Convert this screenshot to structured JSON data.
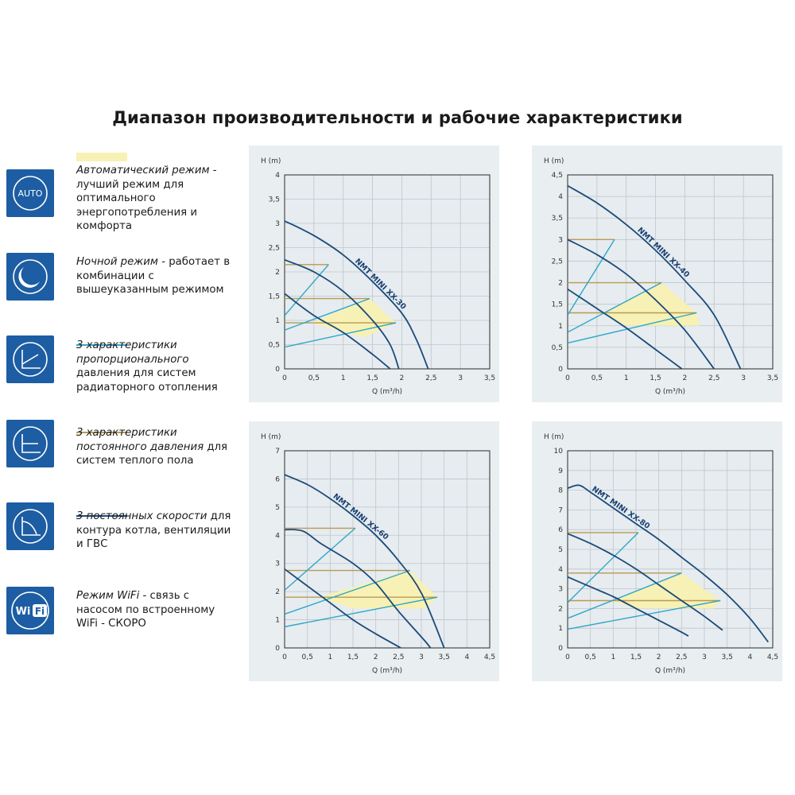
{
  "title": "Диапазон производительности и рабочие характеристики",
  "legend": [
    {
      "icon": "auto-icon",
      "icon_text": "AUTO",
      "swatch": "yellow",
      "emph": "Автоматический режим",
      "rest": " - лучший режим для оптимального энергопотребления и комфорта"
    },
    {
      "icon": "night-mode-icon",
      "icon_text": "",
      "swatch": "",
      "emph": "Ночной режим",
      "rest": " - работает в комбинации с вышеуказанным режимом"
    },
    {
      "icon": "proportional-pressure-icon",
      "icon_text": "",
      "swatch": "cyan",
      "emph": "3 характеристики пропорционального",
      "rest": " давления для систем радиаторного отопления"
    },
    {
      "icon": "constant-pressure-icon",
      "icon_text": "",
      "swatch": "gold",
      "emph": "3 характеристики постоянного давления",
      "rest": " для систем теплого пола"
    },
    {
      "icon": "constant-speed-icon",
      "icon_text": "",
      "swatch": "navy",
      "emph": "3 постоянных скорости",
      "rest": " для контура котла, вентиляции и ГВС"
    },
    {
      "icon": "wifi-icon",
      "icon_text": "Wi Fi",
      "swatch": "",
      "emph": "Режим WiFi",
      "rest": " - связь с насосом по встроенному WiFi - СКОРО"
    }
  ],
  "colors": {
    "navy": "#1b4a7a",
    "cyan": "#2fa6c9",
    "gold": "#b89a55",
    "yellow_fill": "#f7f1b5",
    "icon_blue": "#1d5da3",
    "panel_bg": "#e9eef1"
  },
  "chart_data": [
    {
      "type": "line",
      "title": "NMT MINI XX-30",
      "xlabel": "Q (m³/h)",
      "ylabel": "H (m)",
      "xlim": [
        0,
        3.5
      ],
      "ylim": [
        0,
        4
      ],
      "xticks": [
        "0",
        "0,5",
        "1",
        "1,5",
        "2",
        "2,5",
        "3",
        "3,5"
      ],
      "yticks": [
        "0",
        "0,5",
        "1",
        "1,5",
        "2",
        "2,5",
        "3",
        "3,5",
        "4"
      ],
      "constant_speed": [
        [
          [
            0,
            3.05
          ],
          [
            0.5,
            2.75
          ],
          [
            1,
            2.35
          ],
          [
            1.5,
            1.8
          ],
          [
            2,
            1.15
          ],
          [
            2.25,
            0.6
          ],
          [
            2.45,
            0
          ]
        ],
        [
          [
            0,
            2.25
          ],
          [
            0.5,
            2.0
          ],
          [
            1,
            1.6
          ],
          [
            1.5,
            1.0
          ],
          [
            1.8,
            0.5
          ],
          [
            1.95,
            0
          ]
        ],
        [
          [
            0,
            1.55
          ],
          [
            0.5,
            1.1
          ],
          [
            1,
            0.75
          ],
          [
            1.5,
            0.3
          ],
          [
            1.8,
            0
          ]
        ]
      ],
      "proportional": [
        [
          [
            0,
            1.1
          ],
          [
            0.75,
            2.15
          ]
        ],
        [
          [
            0,
            0.8
          ],
          [
            1.45,
            1.45
          ]
        ],
        [
          [
            0,
            0.45
          ],
          [
            1.9,
            0.95
          ]
        ]
      ],
      "constant_pressure": [
        [
          [
            0,
            2.15
          ],
          [
            0.75,
            2.15
          ]
        ],
        [
          [
            0,
            1.45
          ],
          [
            1.45,
            1.45
          ]
        ],
        [
          [
            0,
            0.95
          ],
          [
            1.9,
            0.95
          ]
        ]
      ],
      "auto_area": [
        [
          0.45,
          0.95
        ],
        [
          1.45,
          1.45
        ],
        [
          1.9,
          0.95
        ],
        [
          1.35,
          0.65
        ]
      ]
    },
    {
      "type": "line",
      "title": "NMT MINI XX-40",
      "xlabel": "Q (m³/h)",
      "ylabel": "H (m)",
      "xlim": [
        0,
        3.5
      ],
      "ylim": [
        0,
        4.5
      ],
      "xticks": [
        "0",
        "0,5",
        "1",
        "1,5",
        "2",
        "2,5",
        "3",
        "3,5"
      ],
      "yticks": [
        "0",
        "0,5",
        "1",
        "1,5",
        "2",
        "2,5",
        "3",
        "3,5",
        "4",
        "4,5"
      ],
      "constant_speed": [
        [
          [
            0,
            4.25
          ],
          [
            0.5,
            3.85
          ],
          [
            1,
            3.35
          ],
          [
            1.5,
            2.75
          ],
          [
            2,
            2.05
          ],
          [
            2.5,
            1.25
          ],
          [
            2.95,
            0
          ]
        ],
        [
          [
            0,
            3.0
          ],
          [
            0.5,
            2.65
          ],
          [
            1,
            2.2
          ],
          [
            1.5,
            1.6
          ],
          [
            2,
            0.9
          ],
          [
            2.5,
            0
          ]
        ],
        [
          [
            0,
            1.85
          ],
          [
            0.5,
            1.4
          ],
          [
            1,
            0.95
          ],
          [
            1.5,
            0.45
          ],
          [
            1.95,
            0
          ]
        ]
      ],
      "proportional": [
        [
          [
            0,
            1.25
          ],
          [
            0.8,
            3.0
          ]
        ],
        [
          [
            0,
            0.85
          ],
          [
            1.6,
            2.0
          ]
        ],
        [
          [
            0,
            0.6
          ],
          [
            2.2,
            1.3
          ]
        ]
      ],
      "constant_pressure": [
        [
          [
            0,
            3.0
          ],
          [
            0.8,
            3.0
          ]
        ],
        [
          [
            0,
            2.0
          ],
          [
            1.6,
            2.0
          ]
        ],
        [
          [
            0,
            1.3
          ],
          [
            2.2,
            1.3
          ]
        ]
      ],
      "auto_area": [
        [
          0.6,
          1.3
        ],
        [
          1.6,
          2.0
        ],
        [
          2.2,
          1.3
        ],
        [
          2.25,
          1.0
        ],
        [
          1.0,
          1.0
        ]
      ]
    },
    {
      "type": "line",
      "title": "NMT MINI XX-60",
      "xlabel": "Q (m³/h)",
      "ylabel": "H (m)",
      "xlim": [
        0,
        4.5
      ],
      "ylim": [
        0,
        7
      ],
      "xticks": [
        "0",
        "0,5",
        "1",
        "1,5",
        "2",
        "2,5",
        "3",
        "3,5",
        "4",
        "4,5"
      ],
      "yticks": [
        "0",
        "1",
        "2",
        "3",
        "4",
        "5",
        "6",
        "7"
      ],
      "constant_speed": [
        [
          [
            0,
            6.15
          ],
          [
            0.5,
            5.8
          ],
          [
            1,
            5.3
          ],
          [
            1.5,
            4.7
          ],
          [
            2,
            4.0
          ],
          [
            2.5,
            3.1
          ],
          [
            3,
            1.95
          ],
          [
            3.5,
            0
          ]
        ],
        [
          [
            0,
            4.2
          ],
          [
            0.4,
            4.15
          ],
          [
            0.8,
            3.7
          ],
          [
            1.5,
            3.0
          ],
          [
            2,
            2.3
          ],
          [
            2.5,
            1.3
          ],
          [
            3.05,
            0.3
          ],
          [
            3.2,
            0
          ]
        ],
        [
          [
            0,
            2.8
          ],
          [
            0.5,
            2.2
          ],
          [
            1,
            1.6
          ],
          [
            1.5,
            1.0
          ],
          [
            2,
            0.5
          ],
          [
            2.55,
            0
          ]
        ]
      ],
      "proportional": [
        [
          [
            0,
            2.05
          ],
          [
            1.55,
            4.25
          ]
        ],
        [
          [
            0,
            1.2
          ],
          [
            2.75,
            2.75
          ]
        ],
        [
          [
            0,
            0.75
          ],
          [
            3.35,
            1.8
          ]
        ]
      ],
      "constant_pressure": [
        [
          [
            0,
            4.25
          ],
          [
            1.55,
            4.25
          ]
        ],
        [
          [
            0,
            2.75
          ],
          [
            2.75,
            2.75
          ]
        ],
        [
          [
            0,
            1.8
          ],
          [
            3.35,
            1.8
          ]
        ]
      ],
      "auto_area": [
        [
          0.75,
          1.8
        ],
        [
          2.75,
          2.75
        ],
        [
          3.35,
          1.8
        ],
        [
          3.1,
          1.4
        ],
        [
          1.5,
          1.4
        ]
      ]
    },
    {
      "type": "line",
      "title": "NMT MINI XX-80",
      "xlabel": "Q (m³/h)",
      "ylabel": "H (m)",
      "xlim": [
        0,
        4.5
      ],
      "ylim": [
        0,
        10
      ],
      "xticks": [
        "0",
        "0,5",
        "1",
        "1,5",
        "2",
        "2,5",
        "3",
        "3,5",
        "4",
        "4,5"
      ],
      "yticks": [
        "0",
        "1",
        "2",
        "3",
        "4",
        "5",
        "6",
        "7",
        "8",
        "9",
        "10"
      ],
      "constant_speed": [
        [
          [
            0,
            8.1
          ],
          [
            0.25,
            8.25
          ],
          [
            0.5,
            7.9
          ],
          [
            1,
            7.1
          ],
          [
            1.5,
            6.3
          ],
          [
            2,
            5.5
          ],
          [
            2.5,
            4.6
          ],
          [
            3,
            3.7
          ],
          [
            3.5,
            2.7
          ],
          [
            4,
            1.5
          ],
          [
            4.4,
            0.3
          ]
        ],
        [
          [
            0,
            5.8
          ],
          [
            0.5,
            5.3
          ],
          [
            1,
            4.7
          ],
          [
            1.5,
            4.0
          ],
          [
            2,
            3.2
          ],
          [
            2.5,
            2.4
          ],
          [
            3,
            1.6
          ],
          [
            3.4,
            0.9
          ]
        ],
        [
          [
            0,
            3.6
          ],
          [
            0.5,
            3.1
          ],
          [
            1,
            2.6
          ],
          [
            1.5,
            2.0
          ],
          [
            2,
            1.4
          ],
          [
            2.5,
            0.8
          ],
          [
            2.65,
            0.6
          ]
        ]
      ],
      "proportional": [
        [
          [
            0,
            2.3
          ],
          [
            1.55,
            5.85
          ]
        ],
        [
          [
            0,
            1.5
          ],
          [
            2.5,
            3.8
          ]
        ],
        [
          [
            0,
            0.95
          ],
          [
            3.35,
            2.4
          ]
        ]
      ],
      "constant_pressure": [
        [
          [
            0,
            5.85
          ],
          [
            1.55,
            5.85
          ]
        ],
        [
          [
            0,
            3.8
          ],
          [
            2.5,
            3.8
          ]
        ],
        [
          [
            0,
            2.4
          ],
          [
            3.35,
            2.4
          ]
        ]
      ],
      "auto_area": [
        [
          0.95,
          2.4
        ],
        [
          2.5,
          3.8
        ],
        [
          3.35,
          2.4
        ],
        [
          3.2,
          2.0
        ],
        [
          1.5,
          2.0
        ]
      ]
    }
  ]
}
